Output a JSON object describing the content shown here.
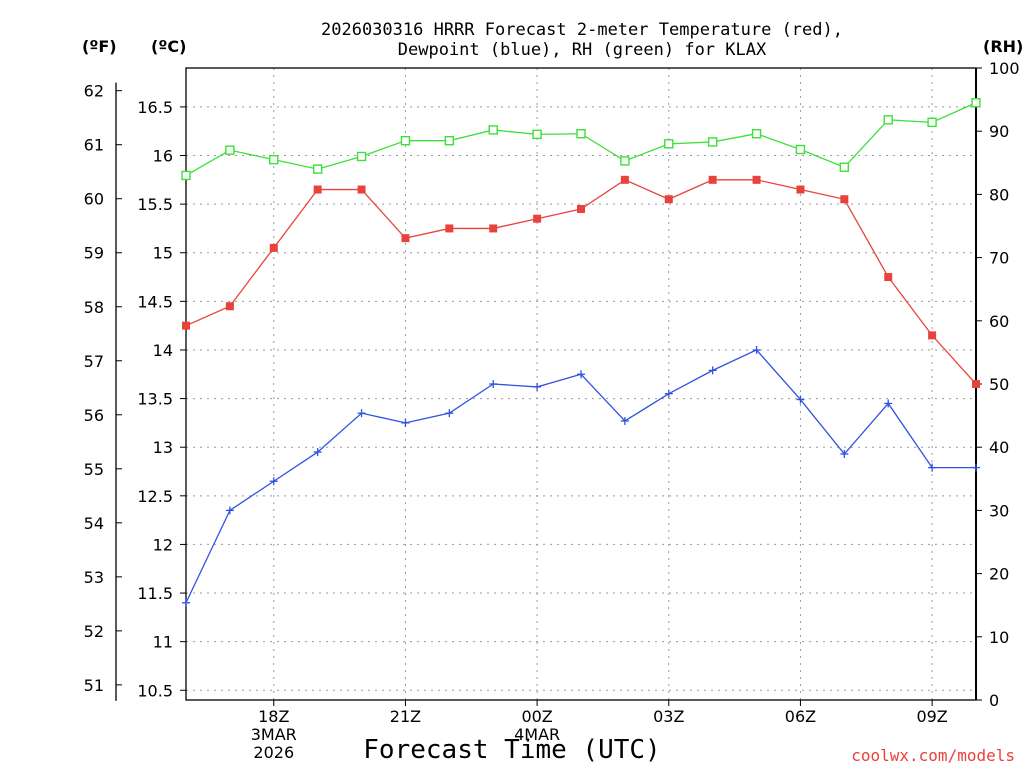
{
  "chart_data": {
    "type": "line",
    "title_lines": [
      "2026030316 HRRR Forecast 2-meter Temperature (red),",
      "Dewpoint (blue), RH (green) for KLAX"
    ],
    "xlabel": "Forecast Time (UTC)",
    "credit": "coolwx.com/models",
    "units": {
      "fahrenheit": "(ºF)",
      "celsius": "(ºC)",
      "rh": "(RH)"
    },
    "x_hours": [
      16,
      17,
      18,
      19,
      20,
      21,
      22,
      23,
      24,
      25,
      26,
      27,
      28,
      29,
      30,
      31,
      32,
      33,
      34
    ],
    "x_range": [
      16,
      34
    ],
    "x_ticks": [
      {
        "hour": 18,
        "lines": [
          "18Z",
          "3MAR",
          "2026"
        ]
      },
      {
        "hour": 21,
        "lines": [
          "21Z"
        ]
      },
      {
        "hour": 24,
        "lines": [
          "00Z",
          "4MAR"
        ]
      },
      {
        "hour": 27,
        "lines": [
          "03Z"
        ]
      },
      {
        "hour": 30,
        "lines": [
          "06Z"
        ]
      },
      {
        "hour": 33,
        "lines": [
          "09Z"
        ]
      }
    ],
    "celsius_axis": {
      "range": [
        10.4,
        16.9
      ],
      "ticks": [
        10.5,
        11,
        11.5,
        12,
        12.5,
        13,
        13.5,
        14,
        14.5,
        15,
        15.5,
        16,
        16.5
      ],
      "tick_labels": [
        "10.5",
        "11",
        "11.5",
        "12",
        "12.5",
        "13",
        "13.5",
        "14",
        "14.5",
        "15",
        "15.5",
        "16",
        "16.5"
      ]
    },
    "fahrenheit_axis": {
      "ticks": [
        51,
        52,
        53,
        54,
        55,
        56,
        57,
        58,
        59,
        60,
        61,
        62
      ],
      "tick_labels": [
        "51",
        "52",
        "53",
        "54",
        "55",
        "56",
        "57",
        "58",
        "59",
        "60",
        "61",
        "62"
      ]
    },
    "rh_axis": {
      "range": [
        0,
        100
      ],
      "ticks": [
        0,
        10,
        20,
        30,
        40,
        50,
        60,
        70,
        80,
        90,
        100
      ],
      "tick_labels": [
        "0",
        "10",
        "20",
        "30",
        "40",
        "50",
        "60",
        "70",
        "80",
        "90",
        "100"
      ]
    },
    "series": [
      {
        "name": "Temperature",
        "units": "C",
        "axis": "celsius",
        "color": "#e8423c",
        "marker": "filled-square",
        "values": [
          14.25,
          14.45,
          15.05,
          15.65,
          15.65,
          15.15,
          15.25,
          15.25,
          15.35,
          15.45,
          15.75,
          15.55,
          15.75,
          15.75,
          15.65,
          15.55,
          14.75,
          14.15,
          13.65
        ]
      },
      {
        "name": "Dewpoint",
        "units": "C",
        "axis": "celsius",
        "color": "#2f52e0",
        "marker": "plus",
        "values": [
          11.4,
          12.35,
          12.65,
          12.95,
          13.35,
          13.25,
          13.35,
          13.65,
          13.62,
          13.75,
          13.27,
          13.55,
          13.79,
          14.0,
          13.49,
          12.93,
          13.45,
          12.79,
          12.79
        ]
      },
      {
        "name": "RH",
        "units": "%",
        "axis": "rh",
        "color": "#3de03a",
        "marker": "open-square",
        "values": [
          83,
          87,
          85.5,
          84,
          86,
          88.5,
          88.5,
          90.2,
          89.5,
          89.6,
          85.3,
          88,
          88.3,
          89.6,
          87.1,
          84.3,
          91.8,
          91.4,
          94.5
        ]
      }
    ]
  }
}
